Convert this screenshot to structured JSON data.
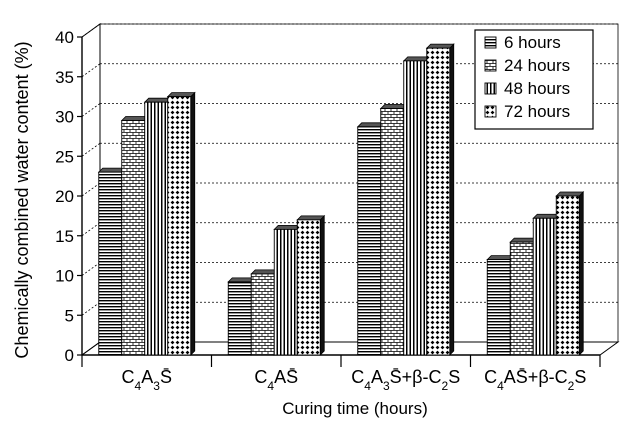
{
  "chart_data": {
    "type": "bar",
    "style": "3d-clustered",
    "categories": [
      "C4A3S̄",
      "C4AS̄",
      "C4A3S̄+β-C2S",
      "C4AS̄+β-C2S"
    ],
    "category_labels_rich": [
      [
        {
          "t": "C"
        },
        {
          "t": "4",
          "sub": true
        },
        {
          "t": "A"
        },
        {
          "t": "3",
          "sub": true
        },
        {
          "t": "S̄"
        }
      ],
      [
        {
          "t": "C"
        },
        {
          "t": "4",
          "sub": true
        },
        {
          "t": "AS̄"
        }
      ],
      [
        {
          "t": "C"
        },
        {
          "t": "4",
          "sub": true
        },
        {
          "t": "A"
        },
        {
          "t": "3",
          "sub": true
        },
        {
          "t": "S̄+β-C"
        },
        {
          "t": "2",
          "sub": true
        },
        {
          "t": "S"
        }
      ],
      [
        {
          "t": "C"
        },
        {
          "t": "4",
          "sub": true
        },
        {
          "t": "AS̄+β-C"
        },
        {
          "t": "2",
          "sub": true
        },
        {
          "t": "S"
        }
      ]
    ],
    "series": [
      {
        "name": "6 hours",
        "pattern": "hlines",
        "values": [
          23.0,
          9.2,
          28.7,
          12.0
        ]
      },
      {
        "name": "24 hours",
        "pattern": "bricks",
        "values": [
          29.5,
          10.2,
          31.0,
          14.2
        ]
      },
      {
        "name": "48 hours",
        "pattern": "vlines",
        "values": [
          31.8,
          15.8,
          37.0,
          17.2
        ]
      },
      {
        "name": "72 hours",
        "pattern": "dots",
        "values": [
          32.5,
          17.0,
          38.6,
          20.0
        ]
      }
    ],
    "xlabel": "Curing time (hours)",
    "ylabel": "Chemically combined water content (%)",
    "ylim": [
      0,
      40
    ],
    "yticks": [
      0,
      5,
      10,
      15,
      20,
      25,
      30,
      35,
      40
    ],
    "grid": "dashed-horizontal",
    "legend_position": "top-right"
  }
}
